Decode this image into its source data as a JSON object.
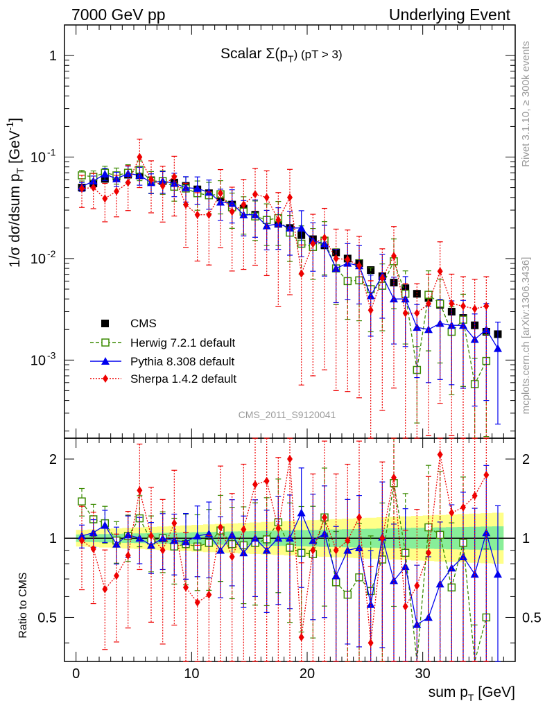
{
  "header": {
    "left": "7000 GeV pp",
    "right": "Underlying Event"
  },
  "side_labels": {
    "upper": "Rivet 3.1.10, ≥ 300k events",
    "lower": "mcplots.cern.ch [arXiv:1306.3436]"
  },
  "plot_title": {
    "main": "Scalar Σ(p",
    "sub": "T",
    "tail": ") (pT >  3)"
  },
  "watermark": "CMS_2011_S9120041",
  "ylabel_top": "1/σ dσ/dsum p",
  "ylabel_top_sub": "T",
  "ylabel_top_unit": " [GeV",
  "ylabel_top_unit_sup": "-1",
  "ylabel_top_close": "]",
  "ylabel_bottom": "Ratio to CMS",
  "xlabel_main": "sum p",
  "xlabel_sub": "T",
  "xlabel_unit": " [GeV]",
  "legend": [
    {
      "name": "CMS",
      "color": "#000000",
      "marker": "square-filled",
      "line": "none"
    },
    {
      "name": "Herwig 7.2.1 default",
      "color": "#3a8a00",
      "marker": "square-open",
      "line": "dashed"
    },
    {
      "name": "Pythia 8.308 default",
      "color": "#0000ee",
      "marker": "triangle",
      "line": "solid"
    },
    {
      "name": "Sherpa 1.4.2 default",
      "color": "#ee0000",
      "marker": "diamond",
      "line": "dotted"
    }
  ],
  "chart_data": {
    "type": "scatter",
    "x": [
      0.5,
      1.5,
      2.5,
      3.5,
      4.5,
      5.5,
      6.5,
      7.5,
      8.5,
      9.5,
      10.5,
      11.5,
      12.5,
      13.5,
      14.5,
      15.5,
      16.5,
      17.5,
      18.5,
      19.5,
      20.5,
      21.5,
      22.5,
      23.5,
      24.5,
      25.5,
      26.5,
      27.5,
      28.5,
      29.5,
      30.5,
      31.5,
      32.5,
      33.5,
      34.5,
      35.5,
      36.5
    ],
    "xlim": [
      -1,
      38
    ],
    "top_panel": {
      "yscale": "log",
      "ylim": [
        0.00017,
        2.0
      ],
      "y_ticks": [
        "10^-3",
        "10^-2",
        "10^-1",
        "1"
      ],
      "series": [
        {
          "name": "CMS",
          "values": [
            0.05,
            0.055,
            0.061,
            0.064,
            0.067,
            0.066,
            0.059,
            0.058,
            0.056,
            0.052,
            0.048,
            0.044,
            0.04,
            0.034,
            0.031,
            0.027,
            0.024,
            0.022,
            0.02,
            0.017,
            0.0155,
            0.0135,
            0.0115,
            0.01,
            0.009,
            0.0077,
            0.0067,
            0.0058,
            0.0051,
            0.0045,
            0.0041,
            0.0035,
            0.003,
            0.0026,
            0.0022,
            0.0019,
            0.0018
          ]
        },
        {
          "name": "Herwig 7.2.1 default",
          "values": [
            0.066,
            0.064,
            0.07,
            0.066,
            0.07,
            0.075,
            0.058,
            0.058,
            0.051,
            0.049,
            0.044,
            0.042,
            0.043,
            0.032,
            0.029,
            0.026,
            0.024,
            0.025,
            0.018,
            0.014,
            0.013,
            0.015,
            0.008,
            0.006,
            0.0061,
            0.005,
            0.0054,
            0.0094,
            0.0045,
            0.0008,
            0.0044,
            0.0036,
            0.0019,
            0.0025,
            0.00058,
            0.00098,
            null
          ]
        },
        {
          "name": "Pythia 8.308 default",
          "values": [
            0.051,
            0.058,
            0.068,
            0.061,
            0.069,
            0.066,
            0.056,
            0.058,
            0.055,
            0.05,
            0.049,
            0.045,
            0.036,
            0.035,
            0.027,
            0.027,
            0.021,
            0.022,
            0.02,
            0.02,
            0.015,
            0.014,
            0.008,
            0.009,
            0.0085,
            0.0043,
            0.0068,
            0.004,
            0.004,
            0.0021,
            0.002,
            0.0023,
            0.0022,
            0.0022,
            0.0016,
            0.002,
            0.0013
          ]
        },
        {
          "name": "Sherpa 1.4.2 default",
          "values": [
            0.049,
            0.05,
            0.039,
            0.046,
            0.056,
            0.1,
            0.06,
            0.052,
            0.064,
            0.034,
            0.027,
            0.027,
            0.044,
            0.029,
            0.034,
            0.043,
            0.04,
            0.024,
            0.04,
            0.0071,
            0.014,
            0.016,
            0.01,
            0.0098,
            0.0085,
            0.0031,
            0.0064,
            0.0106,
            0.0029,
            0.0029,
            0.0036,
            0.0075,
            0.0036,
            0.0034,
            0.0032,
            0.0034,
            null
          ]
        }
      ]
    },
    "ratio_panel": {
      "yscale": "log",
      "ylim": [
        0.34,
        2.4
      ],
      "y_ticks": [
        "0.5",
        "1",
        "2"
      ],
      "reference_line": 1,
      "series": [
        {
          "name": "Herwig 7.2.1 default",
          "values": [
            1.38,
            1.18,
            1.14,
            0.98,
            1.02,
            1.19,
            0.98,
            1.0,
            0.93,
            0.95,
            0.93,
            0.96,
            1.07,
            0.95,
            0.94,
            0.96,
            0.99,
            1.15,
            0.92,
            0.88,
            0.87,
            1.2,
            0.68,
            0.61,
            0.71,
            0.63,
            0.83,
            1.62,
            0.88,
            0.18,
            1.1,
            1.03,
            0.65,
            0.96,
            0.26,
            0.5,
            null
          ]
        },
        {
          "name": "Pythia 8.308 default",
          "values": [
            1.02,
            1.05,
            1.12,
            0.95,
            1.03,
            1.0,
            0.94,
            1.0,
            0.98,
            0.97,
            1.02,
            1.04,
            0.9,
            1.03,
            0.88,
            1.0,
            0.9,
            1.0,
            1.0,
            1.25,
            0.98,
            1.04,
            0.72,
            0.9,
            0.92,
            0.56,
            1.01,
            0.69,
            0.78,
            0.47,
            0.5,
            0.67,
            0.77,
            0.85,
            0.73,
            1.05,
            0.73
          ]
        },
        {
          "name": "Sherpa 1.4.2 default",
          "values": [
            0.98,
            0.91,
            0.64,
            0.72,
            0.86,
            1.52,
            1.02,
            0.9,
            1.14,
            0.65,
            0.57,
            0.61,
            1.1,
            0.85,
            1.08,
            1.6,
            1.65,
            1.09,
            2.0,
            0.42,
            0.9,
            1.2,
            0.9,
            0.98,
            1.2,
            0.4,
            1.0,
            1.7,
            0.55,
            0.66,
            0.88,
            2.08,
            1.25,
            1.31,
            1.45,
            1.74,
            null
          ]
        }
      ]
    },
    "x_ticks": [
      "0",
      "10",
      "20",
      "30"
    ]
  }
}
